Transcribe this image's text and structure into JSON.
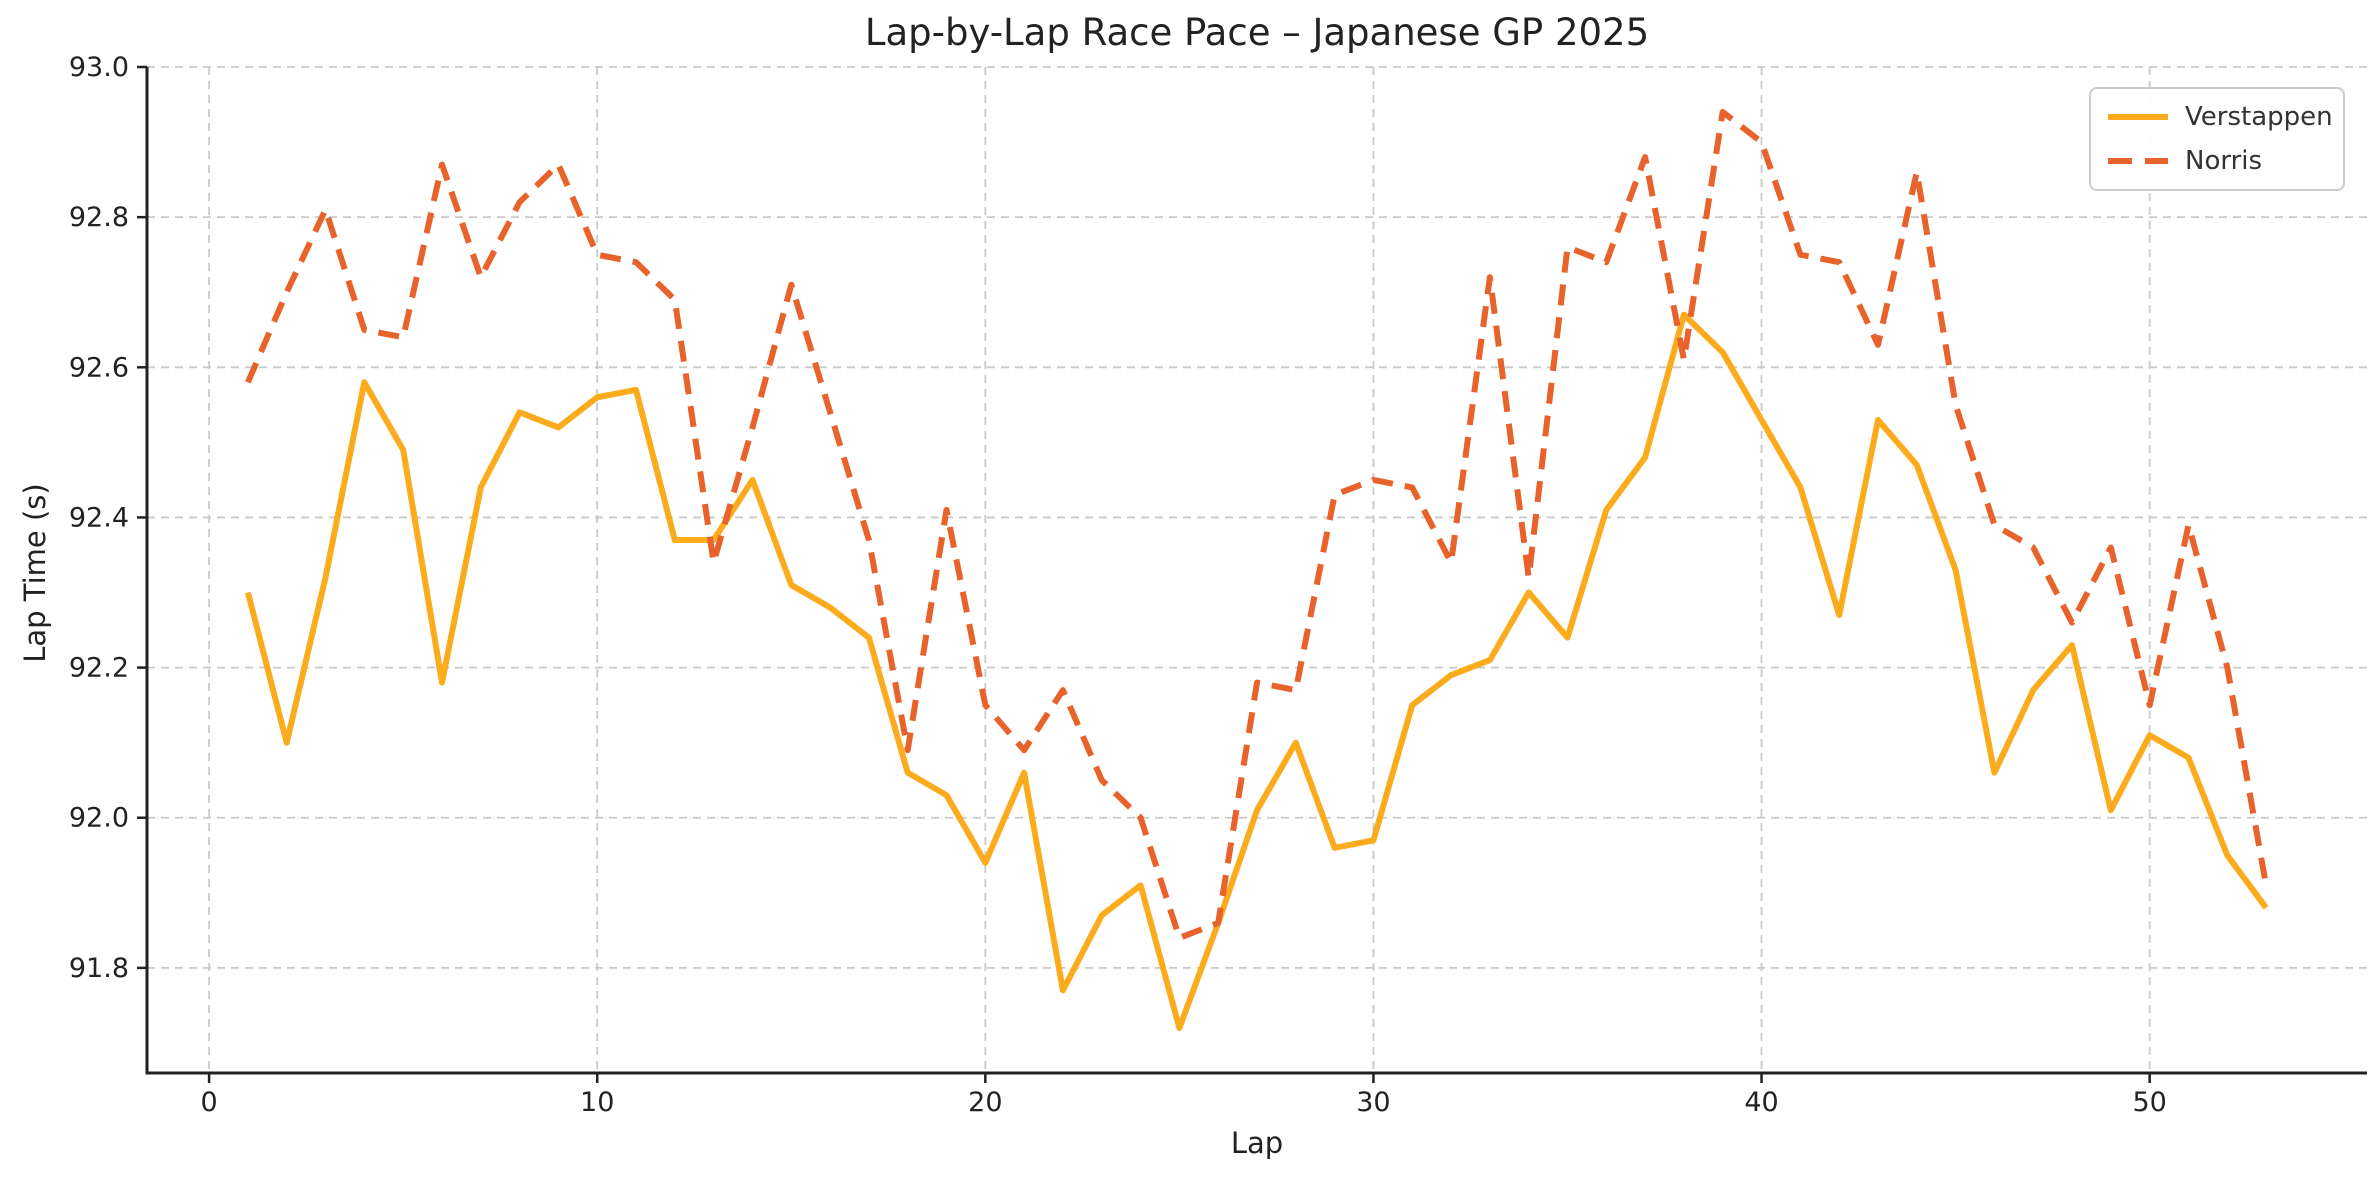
{
  "chart_data": {
    "type": "line",
    "title": "Lap-by-Lap Race Pace – Japanese GP 2025",
    "xlabel": "Lap",
    "ylabel": "Lap Time (s)",
    "x": [
      1,
      2,
      3,
      4,
      5,
      6,
      7,
      8,
      9,
      10,
      11,
      12,
      13,
      14,
      15,
      16,
      17,
      18,
      19,
      20,
      21,
      22,
      23,
      24,
      25,
      26,
      27,
      28,
      29,
      30,
      31,
      32,
      33,
      34,
      35,
      36,
      37,
      38,
      39,
      40,
      41,
      42,
      43,
      44,
      45,
      46,
      47,
      48,
      49,
      50,
      51,
      52,
      53
    ],
    "series": [
      {
        "name": "Verstappen",
        "style": "solid",
        "color": "#FBAB1C",
        "values": [
          92.3,
          92.1,
          92.32,
          92.58,
          92.49,
          92.18,
          92.44,
          92.54,
          92.52,
          92.56,
          92.57,
          92.37,
          92.37,
          92.45,
          92.31,
          92.28,
          92.24,
          92.06,
          92.03,
          91.94,
          92.06,
          91.77,
          91.87,
          91.91,
          91.72,
          91.86,
          92.01,
          92.1,
          91.96,
          91.97,
          92.15,
          92.19,
          92.21,
          92.3,
          92.24,
          92.41,
          92.48,
          92.67,
          92.62,
          92.53,
          92.44,
          92.27,
          92.53,
          92.47,
          92.33,
          92.06,
          92.17,
          92.23,
          92.01,
          92.11,
          92.08,
          91.95,
          91.88
        ]
      },
      {
        "name": "Norris",
        "style": "dashed",
        "color": "#E8632B",
        "values": [
          92.58,
          92.7,
          92.81,
          92.65,
          92.64,
          92.87,
          92.72,
          92.82,
          92.87,
          92.75,
          92.74,
          92.69,
          92.34,
          92.52,
          92.71,
          92.54,
          92.37,
          92.09,
          92.41,
          92.15,
          92.09,
          92.17,
          92.05,
          92.0,
          91.84,
          91.86,
          92.18,
          92.17,
          92.43,
          92.45,
          92.44,
          92.34,
          92.72,
          92.32,
          92.76,
          92.74,
          92.88,
          92.61,
          92.94,
          92.9,
          92.75,
          92.74,
          92.63,
          92.86,
          92.55,
          92.39,
          92.36,
          92.26,
          92.36,
          92.15,
          92.39,
          92.2,
          91.91
        ]
      }
    ],
    "xlim": [
      -1.6,
      55.6
    ],
    "ylim": [
      91.66,
      93.0
    ],
    "x_ticks": [
      0,
      10,
      20,
      30,
      40,
      50
    ],
    "x_tick_labels": [
      "0",
      "10",
      "20",
      "30",
      "40",
      "50"
    ],
    "y_ticks": [
      91.8,
      92.0,
      92.2,
      92.4,
      92.6,
      92.8,
      93.0
    ],
    "y_tick_labels": [
      "91.8",
      "92.0",
      "92.2",
      "92.4",
      "92.6",
      "92.8",
      "93.0"
    ],
    "grid": true,
    "grid_style": "dashed",
    "legend_position": "upper right"
  },
  "colors": {
    "verstappen_line": "#FBAB1C",
    "norris_line": "#E8632B",
    "grid": "#c9c9c9",
    "axis": "#222222",
    "text": "#222222",
    "legend_border": "#cccccc",
    "background": "#ffffff"
  }
}
